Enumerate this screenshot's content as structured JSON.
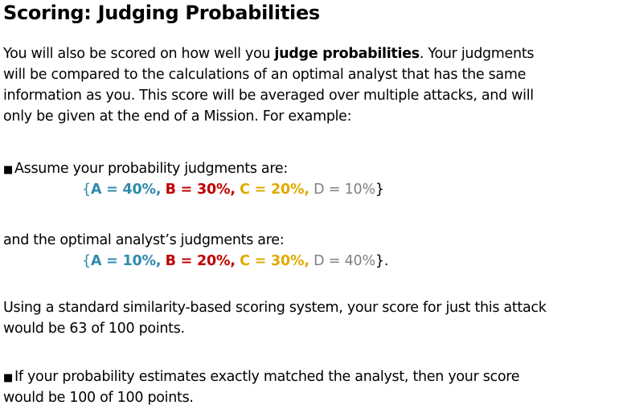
{
  "title": "Scoring: Judging Probabilities",
  "intro": {
    "line1_pre": "You will also be scored on how well you ",
    "line1_bold": "judge probabilities",
    "line1_post": ". Your judgments",
    "line2": "will be compared to the calculations of an optimal analyst that has the same",
    "line3": "information as you. This score will be averaged over multiple attacks, and will",
    "line4": "only be given at the end of a Mission. For example:"
  },
  "bullet1": {
    "marker": "■",
    "text": "Assume your probability judgments are:"
  },
  "yours": {
    "open": "{",
    "a": "A = 40%,",
    "b": "B = 30%,",
    "c": "C = 20%,",
    "d": "D = 10%",
    "close": "}"
  },
  "analyst_intro": "and the optimal analyst’s judgments are:",
  "analyst": {
    "open": "{",
    "a": "A = 10%,",
    "b": "B = 20%,",
    "c": "C = 30%,",
    "d": "D = 40%",
    "close": "}."
  },
  "result": {
    "line1": "Using a standard similarity-based scoring system, your score for just this attack",
    "line2": "would be 63 of 100 points."
  },
  "bullet2": {
    "marker": "■",
    "line1": "If your probability estimates exactly matched the analyst, then your score",
    "line2": "would be 100 of 100 points."
  },
  "colors": {
    "option_a": "#2f8bac",
    "option_b": "#c00000",
    "option_c": "#e0a800",
    "option_d": "#808080"
  }
}
